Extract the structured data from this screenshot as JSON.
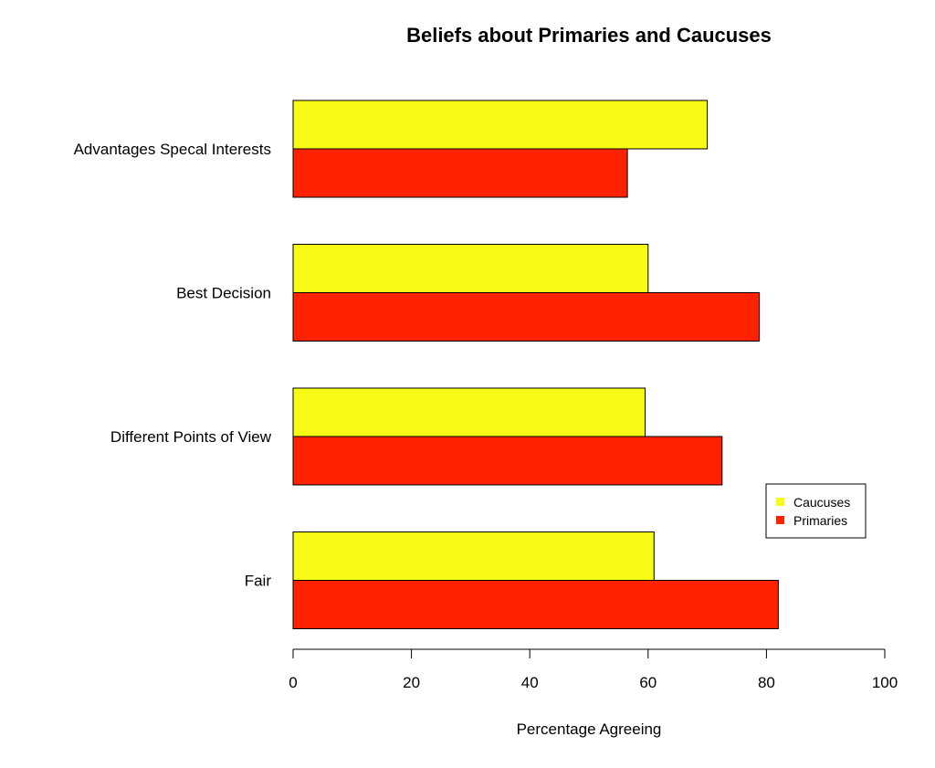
{
  "chart_data": {
    "type": "bar",
    "orientation": "horizontal",
    "title": "Beliefs about Primaries and Caucuses",
    "xlabel": "Percentage Agreeing",
    "ylabel": "",
    "xlim": [
      0,
      100
    ],
    "x_ticks": [
      0,
      20,
      40,
      60,
      80,
      100
    ],
    "categories": [
      "Advantages Specal Interests",
      "Best Decision",
      "Different Points of View",
      "Fair"
    ],
    "series": [
      {
        "name": "Caucuses",
        "color": "#f7fb15",
        "values": [
          70,
          60,
          59.5,
          61
        ]
      },
      {
        "name": "Primaries",
        "color": "#ff2200",
        "values": [
          56.5,
          78.8,
          72.5,
          82
        ]
      }
    ],
    "legend_position": "right",
    "grid": false
  }
}
